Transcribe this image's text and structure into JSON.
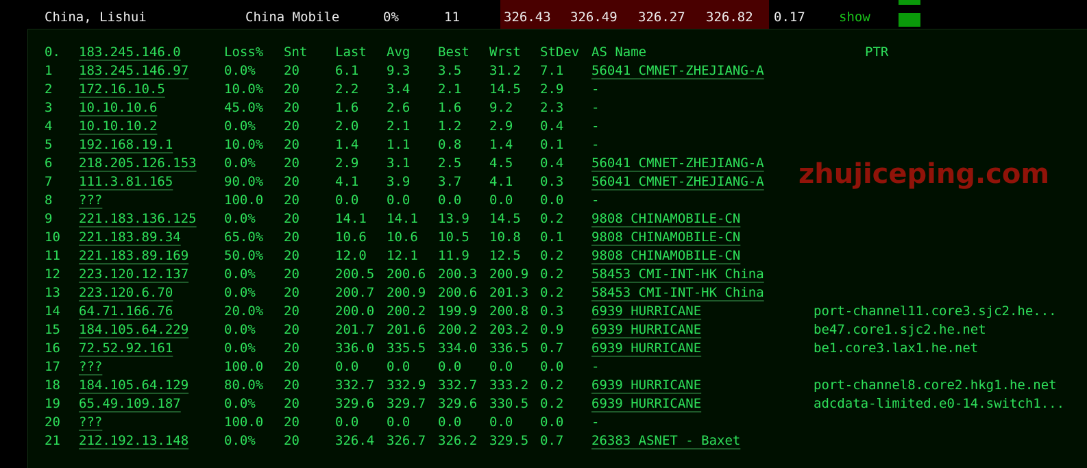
{
  "summary": {
    "location": "China, Lishui",
    "isp": "China Mobile",
    "loss": "0%",
    "count": "11",
    "last": "326.43",
    "avg": "326.49",
    "best": "326.27",
    "worst": "326.82",
    "stdev": "0.17",
    "action": "show"
  },
  "colors": {
    "text": "#2ee05a",
    "latency_bad": "#4a0000",
    "status_ok": "#0a9a0a"
  },
  "headers": [
    "0.",
    "183.245.146.0",
    "Loss%",
    "Snt",
    "Last",
    "Avg",
    "Best",
    "Wrst",
    "StDev",
    "AS Name",
    "PTR"
  ],
  "hops": [
    [
      "1",
      "183.245.146.97",
      "0.0%",
      "20",
      "6.1",
      "9.3",
      "3.5",
      "31.2",
      "7.1",
      "56041 CMNET-ZHEJIANG-A",
      ""
    ],
    [
      "2",
      "172.16.10.5",
      "10.0%",
      "20",
      "2.2",
      "3.4",
      "2.1",
      "14.5",
      "2.9",
      "-",
      ""
    ],
    [
      "3",
      "10.10.10.6",
      "45.0%",
      "20",
      "1.6",
      "2.6",
      "1.6",
      "9.2",
      "2.3",
      "-",
      ""
    ],
    [
      "4",
      "10.10.10.2",
      "0.0%",
      "20",
      "2.0",
      "2.1",
      "1.2",
      "2.9",
      "0.4",
      "-",
      ""
    ],
    [
      "5",
      "192.168.19.1",
      "10.0%",
      "20",
      "1.4",
      "1.1",
      "0.8",
      "1.4",
      "0.1",
      "-",
      ""
    ],
    [
      "6",
      "218.205.126.153",
      "0.0%",
      "20",
      "2.9",
      "3.1",
      "2.5",
      "4.5",
      "0.4",
      "56041 CMNET-ZHEJIANG-A",
      ""
    ],
    [
      "7",
      "111.3.81.165",
      "90.0%",
      "20",
      "4.1",
      "3.9",
      "3.7",
      "4.1",
      "0.3",
      "56041 CMNET-ZHEJIANG-A",
      ""
    ],
    [
      "8",
      "???",
      "100.0",
      "20",
      "0.0",
      "0.0",
      "0.0",
      "0.0",
      "0.0",
      "-",
      ""
    ],
    [
      "9",
      "221.183.136.125",
      "0.0%",
      "20",
      "14.1",
      "14.1",
      "13.9",
      "14.5",
      "0.2",
      "9808  CHINAMOBILE-CN",
      ""
    ],
    [
      "10",
      "221.183.89.34",
      "65.0%",
      "20",
      "10.6",
      "10.6",
      "10.5",
      "10.8",
      "0.1",
      "9808  CHINAMOBILE-CN",
      ""
    ],
    [
      "11",
      "221.183.89.169",
      "50.0%",
      "20",
      "12.0",
      "12.1",
      "11.9",
      "12.5",
      "0.2",
      "9808  CHINAMOBILE-CN",
      ""
    ],
    [
      "12",
      "223.120.12.137",
      "0.0%",
      "20",
      "200.5",
      "200.6",
      "200.3",
      "200.9",
      "0.2",
      "58453 CMI-INT-HK China",
      ""
    ],
    [
      "13",
      "223.120.6.70",
      "0.0%",
      "20",
      "200.7",
      "200.9",
      "200.6",
      "201.3",
      "0.2",
      "58453 CMI-INT-HK China",
      ""
    ],
    [
      "14",
      "64.71.166.76",
      "20.0%",
      "20",
      "200.0",
      "200.2",
      "199.9",
      "200.8",
      "0.3",
      "6939  HURRICANE",
      "port-channel11.core3.sjc2.he..."
    ],
    [
      "15",
      "184.105.64.229",
      "0.0%",
      "20",
      "201.7",
      "201.6",
      "200.2",
      "203.2",
      "0.9",
      "6939  HURRICANE",
      "be47.core1.sjc2.he.net"
    ],
    [
      "16",
      "72.52.92.161",
      "0.0%",
      "20",
      "336.0",
      "335.5",
      "334.0",
      "336.5",
      "0.7",
      "6939  HURRICANE",
      "be1.core3.lax1.he.net"
    ],
    [
      "17",
      "???",
      "100.0",
      "20",
      "0.0",
      "0.0",
      "0.0",
      "0.0",
      "0.0",
      "-",
      ""
    ],
    [
      "18",
      "184.105.64.129",
      "80.0%",
      "20",
      "332.7",
      "332.9",
      "332.7",
      "333.2",
      "0.2",
      "6939  HURRICANE",
      "port-channel8.core2.hkg1.he.net"
    ],
    [
      "19",
      "65.49.109.187",
      "0.0%",
      "20",
      "329.6",
      "329.7",
      "329.6",
      "330.5",
      "0.2",
      "6939  HURRICANE",
      "adcdata-limited.e0-14.switch1..."
    ],
    [
      "20",
      "???",
      "100.0",
      "20",
      "0.0",
      "0.0",
      "0.0",
      "0.0",
      "0.0",
      "-",
      ""
    ],
    [
      "21",
      "212.192.13.148",
      "0.0%",
      "20",
      "326.4",
      "326.7",
      "326.2",
      "329.5",
      "0.7",
      "26383 ASNET - Baxet",
      ""
    ]
  ],
  "watermark": "zhujiceping.com"
}
